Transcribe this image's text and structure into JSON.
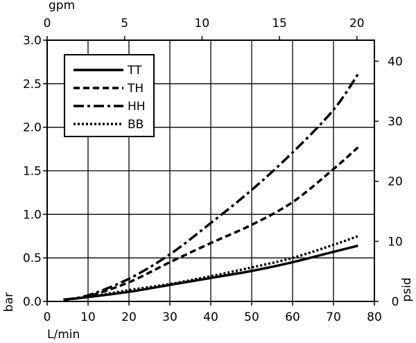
{
  "chart_data": {
    "type": "line",
    "title": "",
    "xlabel": "L/min",
    "x_top_label": "gpm",
    "ylabel": "bar",
    "y_right_label": "psid",
    "xlim": [
      0,
      80
    ],
    "ylim": [
      0,
      3.0
    ],
    "x_ticks": [
      "0",
      "10",
      "20",
      "30",
      "40",
      "50",
      "60",
      "70",
      "80"
    ],
    "y_ticks": [
      "0.0",
      "0.5",
      "1.0",
      "1.5",
      "2.0",
      "2.5",
      "3.0"
    ],
    "x_top": {
      "range": [
        0,
        21.13
      ],
      "ticks": [
        "0",
        "5",
        "10",
        "15",
        "20"
      ]
    },
    "y_right": {
      "range": [
        0,
        43.5
      ],
      "ticks": [
        "0",
        "10",
        "20",
        "30",
        "40"
      ]
    },
    "grid": true,
    "legend_position": "top-left",
    "series": [
      {
        "name": "TT",
        "style": "solid",
        "x": [
          4,
          10,
          20,
          30,
          40,
          50,
          60,
          70,
          76
        ],
        "y": [
          0.02,
          0.05,
          0.11,
          0.19,
          0.27,
          0.35,
          0.45,
          0.57,
          0.64
        ]
      },
      {
        "name": "TH",
        "style": "dashed",
        "x": [
          4,
          10,
          20,
          30,
          40,
          50,
          60,
          70,
          76
        ],
        "y": [
          0.02,
          0.06,
          0.22,
          0.45,
          0.67,
          0.88,
          1.14,
          1.52,
          1.77
        ]
      },
      {
        "name": "HH",
        "style": "dashdot",
        "x": [
          4,
          10,
          20,
          30,
          40,
          50,
          60,
          70,
          76
        ],
        "y": [
          0.02,
          0.07,
          0.26,
          0.54,
          0.9,
          1.28,
          1.71,
          2.2,
          2.61
        ]
      },
      {
        "name": "BB",
        "style": "dotted",
        "x": [
          4,
          10,
          20,
          30,
          40,
          50,
          60,
          70,
          76
        ],
        "y": [
          0.02,
          0.05,
          0.13,
          0.2,
          0.29,
          0.39,
          0.5,
          0.65,
          0.75
        ]
      }
    ]
  }
}
